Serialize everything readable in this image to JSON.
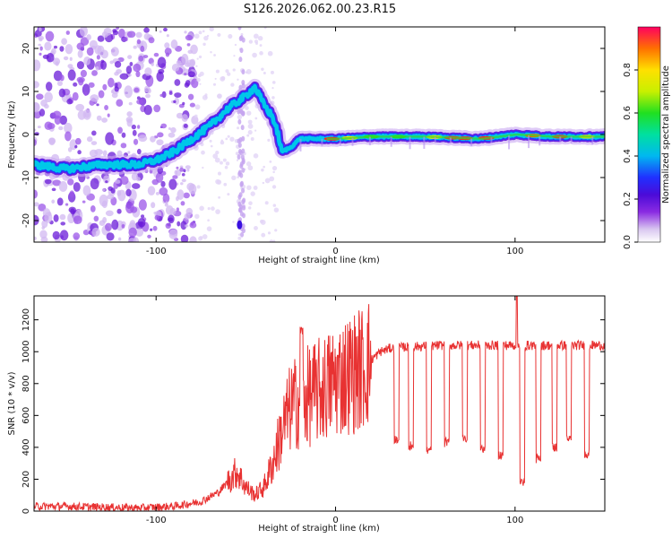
{
  "figure_title": "S126.2026.062.00.23.R15",
  "chart_data": [
    {
      "type": "heatmap",
      "xlabel": "Height of straight line (km)",
      "ylabel": "Frequency (Hz)",
      "xlim": [
        -168,
        150
      ],
      "ylim": [
        -25,
        25
      ],
      "xticks": [
        -100,
        0,
        100
      ],
      "yticks": [
        -20,
        -10,
        0,
        10,
        20
      ],
      "colorbar": {
        "label": "Normalized spectral amplitude",
        "range": [
          0.0,
          1.0
        ],
        "ticks": [
          "0.0",
          "0.2",
          "0.4",
          "0.6",
          "0.8"
        ]
      },
      "ridge": {
        "x": [
          -168,
          -150,
          -130,
          -110,
          -100,
          -90,
          -80,
          -70,
          -60,
          -50,
          -45,
          -40,
          -35,
          -32,
          -30,
          -25,
          -20,
          -10,
          0,
          20,
          50,
          80,
          100,
          120,
          150
        ],
        "freq": [
          -7,
          -8,
          -7,
          -7,
          -6,
          -4,
          -1,
          2,
          6,
          9,
          11,
          7,
          4,
          0,
          -4,
          -3,
          -1,
          -1,
          -1,
          -0.5,
          -0.5,
          -1,
          0,
          -0.5,
          -0.5
        ]
      }
    },
    {
      "type": "line",
      "xlabel": "Height of straight line (km)",
      "ylabel": "SNR (10 * v/v)",
      "xlim": [
        -168,
        150
      ],
      "ylim": [
        0,
        1350
      ],
      "xticks": [
        -100,
        0,
        100
      ],
      "yticks": [
        0,
        200,
        400,
        600,
        800,
        1000,
        1200
      ],
      "series": [
        {
          "name": "SNR",
          "color": "#e83232",
          "x": [
            -168,
            -150,
            -130,
            -110,
            -90,
            -75,
            -65,
            -55,
            -50,
            -45,
            -40,
            -35,
            -30,
            -25,
            -20,
            -15,
            -10,
            -5,
            0,
            5,
            10,
            15,
            20,
            25,
            30,
            40,
            60,
            80,
            100,
            120,
            150
          ],
          "y": [
            30,
            30,
            25,
            20,
            30,
            60,
            120,
            250,
            150,
            100,
            150,
            300,
            500,
            650,
            700,
            720,
            750,
            780,
            820,
            850,
            870,
            900,
            950,
            1000,
            1020,
            1030,
            1040,
            1040,
            1040,
            1040,
            1040
          ]
        }
      ],
      "annotations": {
        "peak_x": 101,
        "peak_y": 1350,
        "dropout_centers": [
          34,
          42,
          52,
          62,
          72,
          82,
          92,
          104,
          113,
          122,
          130,
          140
        ],
        "dropout_levels": [
          420,
          380,
          350,
          400,
          420,
          360,
          320,
          150,
          300,
          370,
          420,
          330
        ]
      }
    }
  ]
}
